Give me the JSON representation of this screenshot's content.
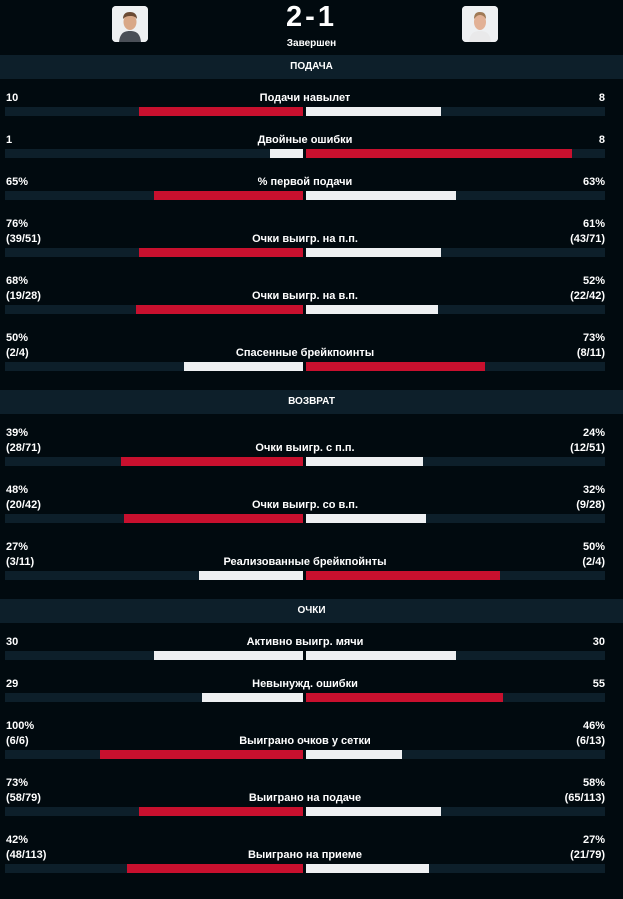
{
  "match": {
    "score": "2-1",
    "status": "Завершен"
  },
  "colors": {
    "background": "#010a0f",
    "track": "#0d1f2a",
    "winner_bar": "#c8102e",
    "other_bar": "#eef0f2"
  },
  "sections": [
    {
      "title": "ПОДАЧА",
      "rows": [
        {
          "label": "Подачи навылет",
          "left": "10",
          "right": "8",
          "left_share": 0.55,
          "right_share": 0.45,
          "winner": "left"
        },
        {
          "label": "Двойные ошибки",
          "left": "1",
          "right": "8",
          "left_share": 0.11,
          "right_share": 0.89,
          "winner": "right"
        },
        {
          "label": "% первой подачи",
          "left": "65%",
          "right": "63%",
          "left_share": 0.5,
          "right_share": 0.5,
          "winner": "left"
        },
        {
          "label": "Очки выигр. на п.п.",
          "left": "76%\n(39/51)",
          "right": "61%\n(43/71)",
          "left_share": 0.55,
          "right_share": 0.45,
          "winner": "left"
        },
        {
          "label": "Очки выигр. на в.п.",
          "left": "68%\n(19/28)",
          "right": "52%\n(22/42)",
          "left_share": 0.56,
          "right_share": 0.44,
          "winner": "left"
        },
        {
          "label": "Спасенные брейкпоинты",
          "left": "50%\n(2/4)",
          "right": "73%\n(8/11)",
          "left_share": 0.4,
          "right_share": 0.6,
          "winner": "right"
        }
      ]
    },
    {
      "title": "ВОЗВРАТ",
      "rows": [
        {
          "label": "Очки выигр. с п.п.",
          "left": "39%\n(28/71)",
          "right": "24%\n(12/51)",
          "left_share": 0.61,
          "right_share": 0.39,
          "winner": "left"
        },
        {
          "label": "Очки выигр. со в.п.",
          "left": "48%\n(20/42)",
          "right": "32%\n(9/28)",
          "left_share": 0.6,
          "right_share": 0.4,
          "winner": "left"
        },
        {
          "label": "Реализованные брейкпойнты",
          "left": "27%\n(3/11)",
          "right": "50%\n(2/4)",
          "left_share": 0.35,
          "right_share": 0.65,
          "winner": "right"
        }
      ]
    },
    {
      "title": "ОЧКИ",
      "rows": [
        {
          "label": "Активно выигр. мячи",
          "left": "30",
          "right": "30",
          "left_share": 0.5,
          "right_share": 0.5,
          "winner": "none"
        },
        {
          "label": "Невынужд. ошибки",
          "left": "29",
          "right": "55",
          "left_share": 0.34,
          "right_share": 0.66,
          "winner": "right"
        },
        {
          "label": "Выиграно очков у сетки",
          "left": "100%\n(6/6)",
          "right": "46%\n(6/13)",
          "left_share": 0.68,
          "right_share": 0.32,
          "winner": "left"
        },
        {
          "label": "Выиграно на подаче",
          "left": "73%\n(58/79)",
          "right": "58%\n(65/113)",
          "left_share": 0.55,
          "right_share": 0.45,
          "winner": "left"
        },
        {
          "label": "Выиграно на приеме",
          "left": "42%\n(48/113)",
          "right": "27%\n(21/79)",
          "left_share": 0.59,
          "right_share": 0.41,
          "winner": "left"
        }
      ]
    }
  ],
  "icons": [
    "player-left-avatar-icon",
    "player-right-avatar-icon"
  ]
}
